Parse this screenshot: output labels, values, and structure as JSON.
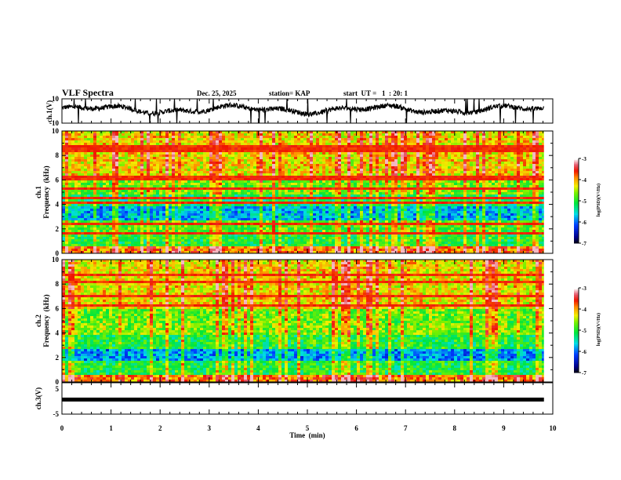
{
  "header": {
    "title": "VLF Spectra",
    "date": "Dec. 25, 2025",
    "station": "station= KAP",
    "start": "start  UT =   1  : 20: 1"
  },
  "chart_data": [
    {
      "type": "line",
      "name": "ch1-waveform",
      "ylabel": "ch.1(V)",
      "ylim": [
        -10,
        10
      ],
      "yticks": [
        "10",
        "-10"
      ],
      "xlim": [
        0,
        10
      ],
      "data_end_min": 9.82,
      "description_values": "noisy waveform around -2 to 4 V"
    },
    {
      "type": "heatmap",
      "name": "ch1-spectrogram",
      "ylabel_line1": "ch.1",
      "ylabel_line2": "Frequency  (kHz)",
      "ylim": [
        0,
        10
      ],
      "yticks": [
        "0",
        "2",
        "4",
        "6",
        "8",
        "10"
      ],
      "xlim": [
        0,
        10
      ],
      "colorbar": {
        "label": "log(PSD)(V²/Hz)",
        "range": [
          -7,
          -3
        ],
        "ticks": [
          "-3",
          "-4",
          "-5",
          "-6",
          "-7"
        ]
      }
    },
    {
      "type": "heatmap",
      "name": "ch2-spectrogram",
      "ylabel_line1": "ch.2",
      "ylabel_line2": "Frequency  (kHz)",
      "ylim": [
        0,
        10
      ],
      "yticks": [
        "0",
        "2",
        "4",
        "6",
        "8",
        "10"
      ],
      "xlim": [
        0,
        10
      ],
      "colorbar": {
        "label": "log(PSD)(V²/Hz)",
        "range": [
          -7,
          -3
        ],
        "ticks": [
          "-3",
          "-4",
          "-5",
          "-6",
          "-7"
        ]
      }
    },
    {
      "type": "line",
      "name": "ch3-waveform",
      "ylabel": "ch.3(V)",
      "ylim": [
        -5,
        5
      ],
      "yticks": [
        "5",
        "-5"
      ],
      "xlim": [
        0,
        10
      ],
      "xlabel": "Time  (min)",
      "xticks": [
        "0",
        "1",
        "2",
        "3",
        "4",
        "5",
        "6",
        "7",
        "8",
        "9",
        "10"
      ],
      "level_v": 0.8
    }
  ]
}
